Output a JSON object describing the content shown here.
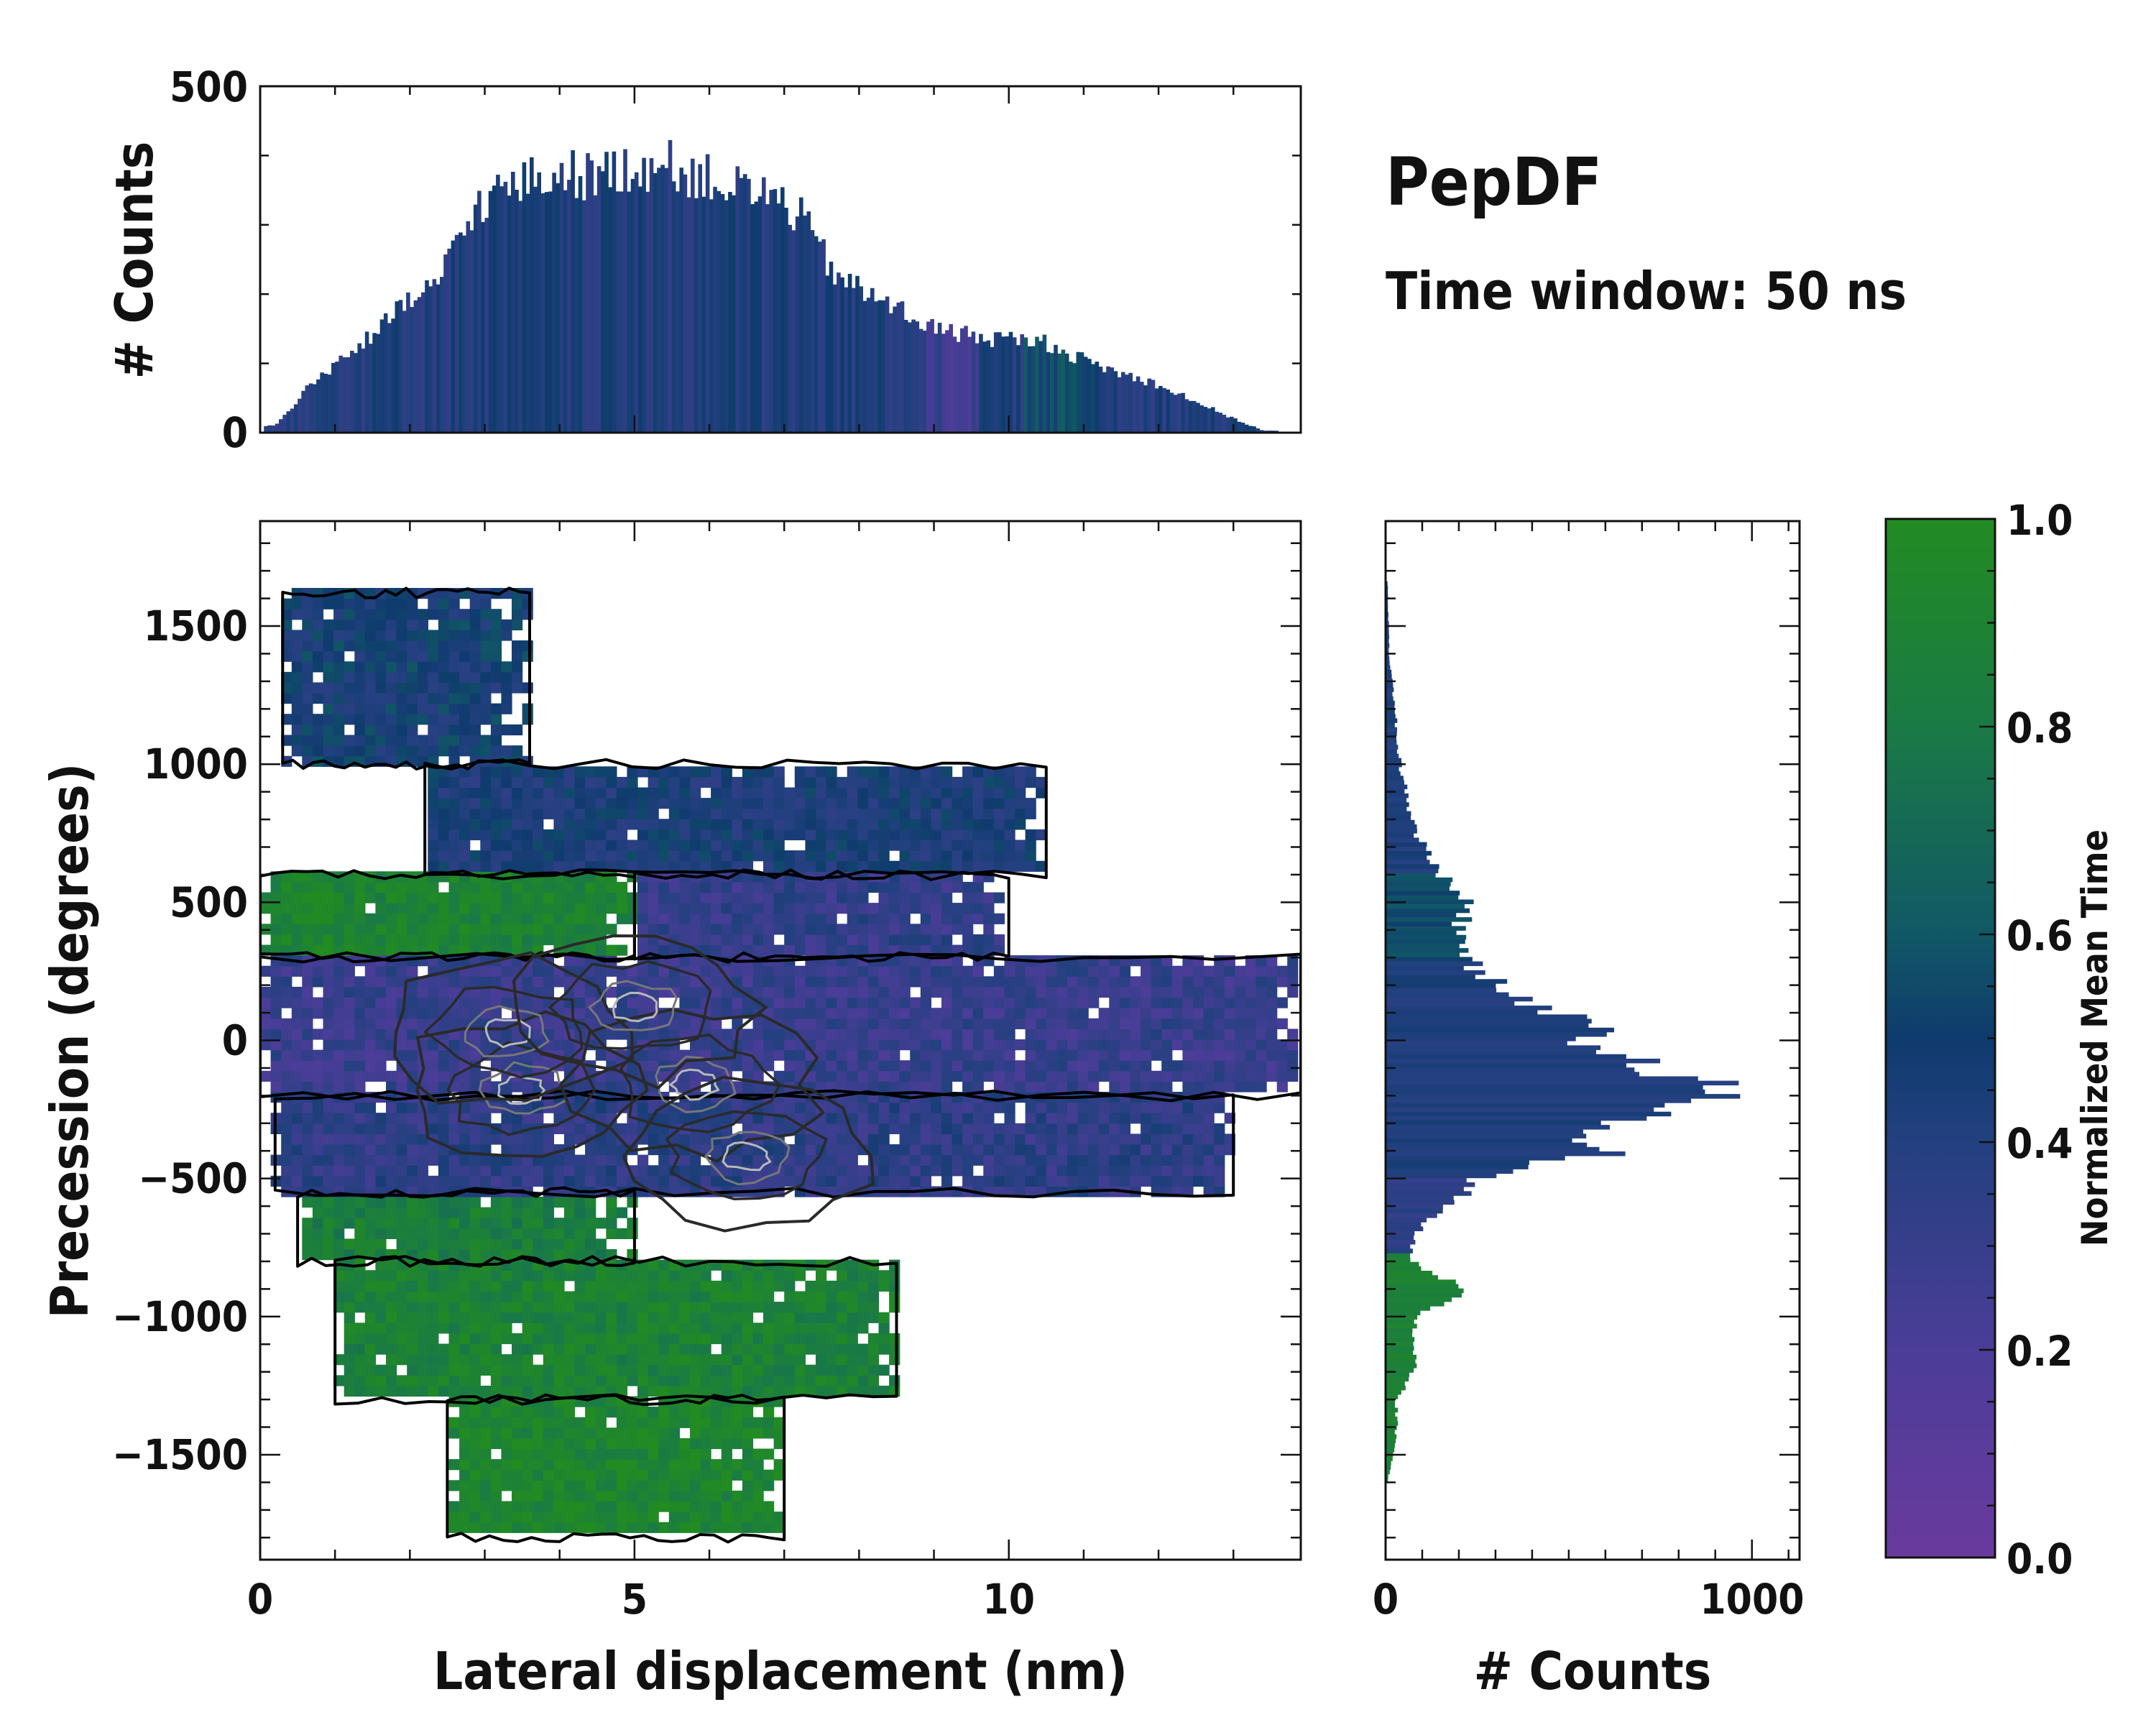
{
  "figure": {
    "title": "PepDF",
    "subtitle": "Time window: 50 ns"
  },
  "colors": {
    "low": "#6a3a9e",
    "mid": "#0f3b6e",
    "high": "#228b22",
    "contour_outline": "#000000",
    "contour_inner": "#2a2a2a",
    "contour_light": "#b8b8b8"
  },
  "chart_data": [
    {
      "id": "main",
      "type": "heatmap",
      "xlabel": "Lateral displacement (nm)",
      "ylabel": "Precession (degrees)",
      "xlim": [
        0,
        13.9
      ],
      "ylim": [
        -1880,
        1880
      ],
      "xticks": [
        0,
        5,
        10
      ],
      "yticks": [
        1500,
        1000,
        500,
        0,
        -500,
        -1000,
        -1500
      ],
      "ytick_labels": [
        "1500",
        "1000",
        "500",
        "0",
        "−500",
        "−1000",
        "−1500"
      ],
      "color_value": "normalized mean time",
      "regions": [
        {
          "y": [
            -1800,
            -1300
          ],
          "x": [
            2.5,
            7.0
          ],
          "value": 0.92
        },
        {
          "y": [
            -1300,
            -800
          ],
          "x": [
            1.0,
            8.5
          ],
          "value": 0.88
        },
        {
          "y": [
            -800,
            -550
          ],
          "x": [
            0.5,
            5.0
          ],
          "value": 0.85
        },
        {
          "y": [
            -550,
            -200
          ],
          "x": [
            0.2,
            13.0
          ],
          "value": 0.35
        },
        {
          "y": [
            -200,
            300
          ],
          "x": [
            0.0,
            13.9
          ],
          "value": 0.3
        },
        {
          "y": [
            300,
            600
          ],
          "x": [
            0.0,
            5.0
          ],
          "value": 0.9
        },
        {
          "y": [
            300,
            600
          ],
          "x": [
            5.0,
            10.0
          ],
          "value": 0.32
        },
        {
          "y": [
            600,
            1000
          ],
          "x": [
            2.2,
            10.5
          ],
          "value": 0.45
        },
        {
          "y": [
            1000,
            1620
          ],
          "x": [
            0.3,
            3.6
          ],
          "value": 0.48
        }
      ],
      "density_peaks": [
        {
          "x": 3.5,
          "y": -180
        },
        {
          "x": 5.8,
          "y": -160
        },
        {
          "x": 6.5,
          "y": -420
        },
        {
          "x": 3.3,
          "y": 30
        },
        {
          "x": 5.0,
          "y": 120
        }
      ]
    },
    {
      "id": "top-histogram",
      "type": "bar",
      "ylabel": "# Counts",
      "xlim": [
        0,
        13.9
      ],
      "ylim": [
        0,
        500
      ],
      "yticks": [
        0,
        500
      ],
      "envelope": {
        "x": [
          0.2,
          0.6,
          1.0,
          1.5,
          2.0,
          2.4,
          2.7,
          3.0,
          3.5,
          4.0,
          4.5,
          5.0,
          5.5,
          6.0,
          6.5,
          7.0,
          7.3,
          7.6,
          8.0,
          8.5,
          9.0,
          9.5,
          10.0,
          10.5,
          11.0,
          11.5,
          12.0,
          12.5,
          13.0,
          13.4
        ],
        "y": [
          10,
          60,
          100,
          140,
          190,
          220,
          290,
          340,
          360,
          375,
          370,
          385,
          385,
          365,
          350,
          335,
          300,
          240,
          205,
          180,
          150,
          140,
          135,
          130,
          105,
          85,
          70,
          45,
          20,
          3
        ]
      }
    },
    {
      "id": "right-histogram",
      "type": "bar",
      "orientation": "horizontal",
      "xlabel": "# Counts",
      "xlim": [
        0,
        1130
      ],
      "xticks": [
        0,
        1000
      ],
      "envelope": {
        "y": [
          1660,
          1400,
          1200,
          1000,
          800,
          600,
          500,
          400,
          300,
          200,
          100,
          50,
          0,
          -100,
          -150,
          -200,
          -250,
          -300,
          -350,
          -400,
          -450,
          -500,
          -600,
          -700,
          -800,
          -850,
          -900,
          -1000,
          -1100,
          -1200,
          -1300,
          -1400,
          -1500,
          -1600
        ],
        "counts": [
          5,
          10,
          25,
          40,
          70,
          140,
          250,
          190,
          220,
          300,
          420,
          650,
          560,
          710,
          880,
          1030,
          700,
          660,
          560,
          620,
          400,
          260,
          160,
          80,
          70,
          120,
          230,
          90,
          70,
          80,
          30,
          30,
          20,
          5
        ]
      }
    },
    {
      "id": "colorbar",
      "type": "colorbar",
      "label": "Normalized Mean Time",
      "range": [
        0.0,
        1.0
      ],
      "ticks": [
        0.0,
        0.2,
        0.4,
        0.6,
        0.8,
        1.0
      ],
      "tick_labels": [
        "0.0",
        "0.2",
        "0.4",
        "0.6",
        "0.8",
        "1.0"
      ]
    }
  ]
}
